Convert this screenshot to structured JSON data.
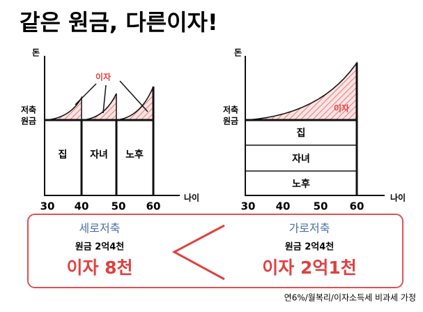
{
  "title": "같은 원금, 다른이자!",
  "left_diagram": {
    "y_axis_label": "돈",
    "principal_label": [
      "저축",
      "원금"
    ],
    "interest_label": "이자",
    "segments": [
      "집",
      "자녀",
      "노후"
    ],
    "x_axis_label": "나이",
    "x_ticks": [
      "30",
      "40",
      "50",
      "60"
    ]
  },
  "right_diagram": {
    "y_axis_label": "돈",
    "principal_label": [
      "저축",
      "원금"
    ],
    "interest_label": "이자",
    "segments": [
      "집",
      "자녀",
      "노후"
    ],
    "x_axis_label": "나이",
    "x_ticks": [
      "30",
      "40",
      "50",
      "60"
    ]
  },
  "comparison": {
    "left": {
      "title": "세로저축",
      "principal": "원금 2억4천",
      "interest": "이자 8천"
    },
    "right": {
      "title": "가로저축",
      "principal": "원금 2억4천",
      "interest": "이자 2억1천"
    }
  },
  "footnote": "연6%/월복리/이자소득세 비과세 가정"
}
